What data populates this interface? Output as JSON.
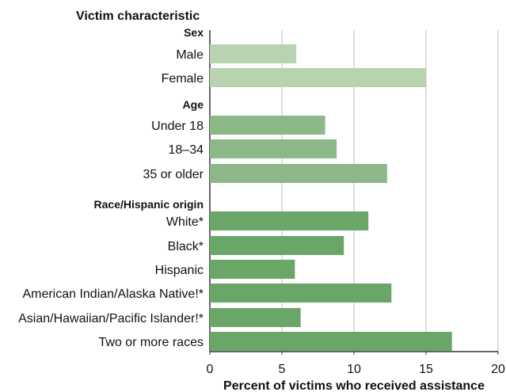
{
  "chart_data": {
    "type": "bar",
    "orientation": "horizontal",
    "title": "Victim characteristic",
    "xlabel": "Percent of victims who received assistance",
    "ylabel": "",
    "xlim": [
      0,
      20
    ],
    "xticks": [
      0,
      5,
      10,
      15,
      20
    ],
    "grid": true,
    "groups": [
      {
        "label": "Sex",
        "color": "#b7d3b0",
        "items": [
          {
            "label": "Male",
            "value": 6.0
          },
          {
            "label": "Female",
            "value": 15.0
          }
        ]
      },
      {
        "label": "Age",
        "color": "#8cb887",
        "items": [
          {
            "label": "Under 18",
            "value": 8.0
          },
          {
            "label": "18–34",
            "value": 8.8
          },
          {
            "label": "35 or older",
            "value": 12.3
          }
        ]
      },
      {
        "label": "Race/Hispanic origin",
        "color": "#6aa668",
        "items": [
          {
            "label": "White*",
            "value": 11.0
          },
          {
            "label": "Black*",
            "value": 9.3
          },
          {
            "label": "Hispanic",
            "value": 5.9
          },
          {
            "label": "American Indian/Alaska Native!*",
            "value": 12.6
          },
          {
            "label": "Asian/Hawaiian/Pacific Islander!*",
            "value": 6.3
          },
          {
            "label": "Two or more races",
            "value": 16.8
          }
        ]
      }
    ]
  }
}
